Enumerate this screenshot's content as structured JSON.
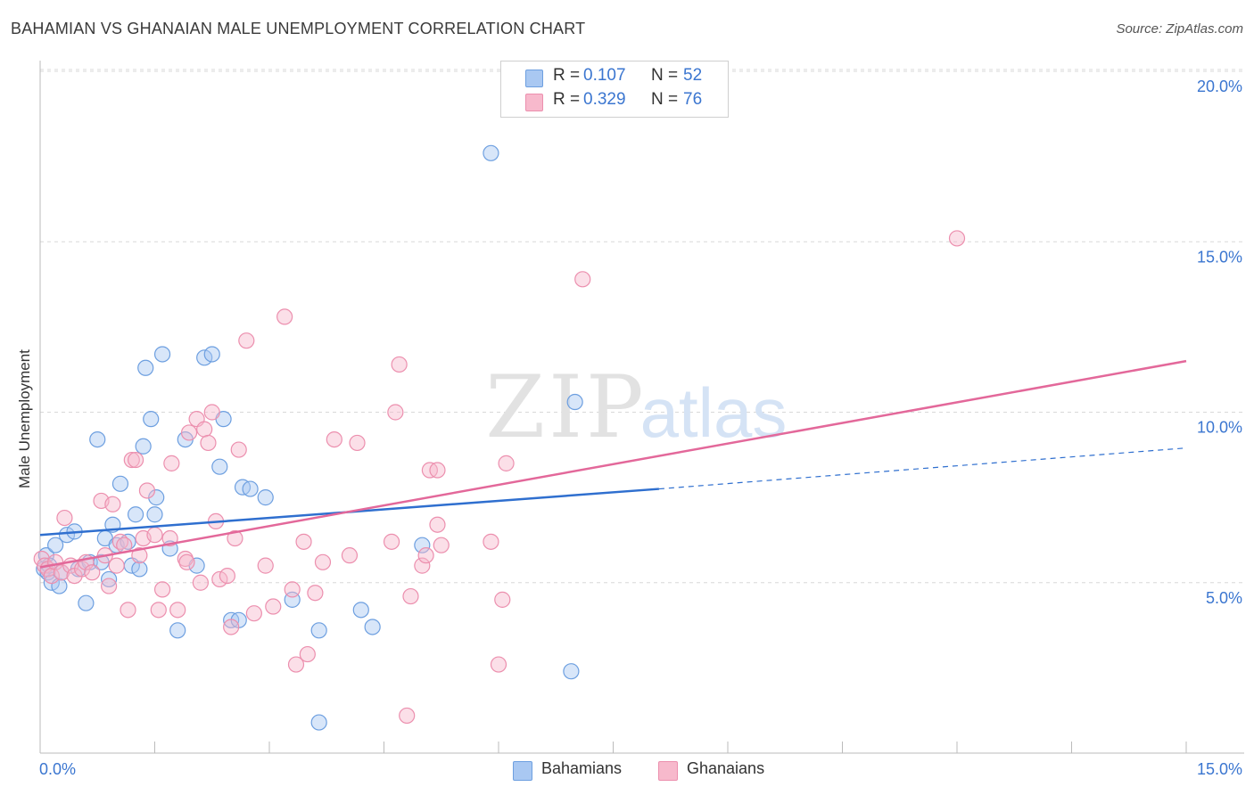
{
  "title": "BAHAMIAN VS GHANAIAN MALE UNEMPLOYMENT CORRELATION CHART",
  "source": "Source: ZipAtlas.com",
  "watermark": {
    "zip": "ZIP",
    "atlas": "atlas"
  },
  "legend": {
    "rows": [
      {
        "r_label": "R =",
        "r_value": "0.107",
        "n_label": "N =",
        "n_value": "52",
        "color": "#a9c8f2"
      },
      {
        "r_label": "R =",
        "r_value": "0.329",
        "n_label": "N =",
        "n_value": "76",
        "color": "#f7b9cc"
      }
    ]
  },
  "bottom_legend": [
    {
      "label": "Bahamians",
      "color": "#a9c8f2"
    },
    {
      "label": "Ghanaians",
      "color": "#f7b9cc"
    }
  ],
  "colors": {
    "blue_fill": "#a9c8f2",
    "blue_stroke": "#6d9fe0",
    "blue_line": "#2f6fcf",
    "pink_fill": "#f7b9cc",
    "pink_stroke": "#ec8fae",
    "pink_line": "#e3689a",
    "tick_label": "#3b76d0",
    "grid": "#d8d8d8"
  },
  "chart_data": {
    "type": "scatter",
    "title": "BAHAMIAN VS GHANAIAN MALE UNEMPLOYMENT CORRELATION CHART",
    "xlabel": "",
    "ylabel": "Male Unemployment",
    "xlim": [
      0,
      15
    ],
    "ylim": [
      0,
      20
    ],
    "x_tick_labels": [
      "0.0%",
      "15.0%"
    ],
    "y_tick_values": [
      5,
      10,
      15,
      20
    ],
    "y_tick_labels": [
      "5.0%",
      "10.0%",
      "15.0%",
      "20.0%"
    ],
    "grid": true,
    "legend_position": "top-center",
    "series": [
      {
        "name": "Bahamians",
        "r": 0.107,
        "n": 52,
        "trend": {
          "x": [
            0,
            8.1
          ],
          "y": [
            6.4,
            7.75
          ],
          "dashed_extension_to": [
            15,
            8.95
          ]
        },
        "points": [
          [
            0.05,
            5.4
          ],
          [
            0.08,
            5.8
          ],
          [
            0.1,
            5.3
          ],
          [
            0.15,
            5.0
          ],
          [
            0.2,
            6.1
          ],
          [
            0.25,
            4.9
          ],
          [
            0.28,
            5.3
          ],
          [
            0.35,
            6.4
          ],
          [
            0.45,
            6.5
          ],
          [
            0.5,
            5.4
          ],
          [
            0.6,
            4.4
          ],
          [
            0.65,
            5.6
          ],
          [
            0.75,
            9.2
          ],
          [
            0.8,
            5.6
          ],
          [
            0.85,
            6.3
          ],
          [
            0.9,
            5.1
          ],
          [
            0.95,
            6.7
          ],
          [
            1.0,
            6.1
          ],
          [
            1.05,
            7.9
          ],
          [
            1.15,
            6.2
          ],
          [
            1.2,
            5.5
          ],
          [
            1.25,
            7.0
          ],
          [
            1.3,
            5.4
          ],
          [
            1.35,
            9.0
          ],
          [
            1.38,
            11.3
          ],
          [
            1.45,
            9.8
          ],
          [
            1.5,
            7.0
          ],
          [
            1.52,
            7.5
          ],
          [
            1.6,
            11.7
          ],
          [
            1.7,
            6.0
          ],
          [
            1.8,
            3.6
          ],
          [
            1.9,
            9.2
          ],
          [
            2.05,
            5.5
          ],
          [
            2.15,
            11.6
          ],
          [
            2.25,
            11.7
          ],
          [
            2.35,
            8.4
          ],
          [
            2.4,
            9.8
          ],
          [
            2.5,
            3.9
          ],
          [
            2.6,
            3.9
          ],
          [
            2.65,
            7.8
          ],
          [
            2.75,
            7.75
          ],
          [
            2.95,
            7.5
          ],
          [
            3.3,
            4.5
          ],
          [
            3.65,
            0.9
          ],
          [
            3.65,
            3.6
          ],
          [
            4.2,
            4.2
          ],
          [
            4.35,
            3.7
          ],
          [
            5.0,
            6.1
          ],
          [
            5.9,
            17.6
          ],
          [
            6.95,
            2.4
          ],
          [
            7.0,
            10.3
          ],
          [
            0.12,
            5.5
          ]
        ]
      },
      {
        "name": "Ghanaians",
        "r": 0.329,
        "n": 76,
        "trend": {
          "x": [
            0,
            15
          ],
          "y": [
            5.45,
            11.5
          ]
        },
        "points": [
          [
            0.02,
            5.7
          ],
          [
            0.06,
            5.5
          ],
          [
            0.1,
            5.4
          ],
          [
            0.15,
            5.2
          ],
          [
            0.2,
            5.6
          ],
          [
            0.28,
            5.3
          ],
          [
            0.32,
            6.9
          ],
          [
            0.4,
            5.5
          ],
          [
            0.45,
            5.2
          ],
          [
            0.55,
            5.4
          ],
          [
            0.6,
            5.6
          ],
          [
            0.68,
            5.3
          ],
          [
            0.8,
            7.4
          ],
          [
            0.85,
            5.8
          ],
          [
            0.9,
            4.9
          ],
          [
            0.95,
            7.3
          ],
          [
            1.0,
            5.5
          ],
          [
            1.05,
            6.2
          ],
          [
            1.1,
            6.1
          ],
          [
            1.15,
            4.2
          ],
          [
            1.2,
            8.6
          ],
          [
            1.25,
            8.6
          ],
          [
            1.3,
            5.8
          ],
          [
            1.35,
            6.3
          ],
          [
            1.4,
            7.7
          ],
          [
            1.5,
            6.4
          ],
          [
            1.55,
            4.2
          ],
          [
            1.6,
            4.8
          ],
          [
            1.7,
            6.3
          ],
          [
            1.72,
            8.5
          ],
          [
            1.8,
            4.2
          ],
          [
            1.9,
            5.7
          ],
          [
            1.92,
            5.6
          ],
          [
            1.95,
            9.4
          ],
          [
            2.05,
            9.8
          ],
          [
            2.1,
            5.0
          ],
          [
            2.15,
            9.5
          ],
          [
            2.2,
            9.1
          ],
          [
            2.25,
            10.0
          ],
          [
            2.3,
            6.8
          ],
          [
            2.35,
            5.1
          ],
          [
            2.45,
            5.2
          ],
          [
            2.5,
            3.7
          ],
          [
            2.55,
            6.3
          ],
          [
            2.6,
            8.9
          ],
          [
            2.7,
            12.1
          ],
          [
            2.8,
            4.1
          ],
          [
            2.95,
            5.5
          ],
          [
            3.05,
            4.3
          ],
          [
            3.2,
            12.8
          ],
          [
            3.3,
            4.8
          ],
          [
            3.35,
            2.6
          ],
          [
            3.45,
            6.2
          ],
          [
            3.5,
            2.9
          ],
          [
            3.6,
            4.7
          ],
          [
            3.7,
            5.6
          ],
          [
            3.85,
            9.2
          ],
          [
            4.05,
            5.8
          ],
          [
            4.15,
            9.1
          ],
          [
            4.6,
            6.2
          ],
          [
            4.65,
            10.0
          ],
          [
            4.7,
            11.4
          ],
          [
            4.8,
            1.1
          ],
          [
            4.85,
            4.6
          ],
          [
            5.0,
            5.5
          ],
          [
            5.05,
            5.8
          ],
          [
            5.1,
            8.3
          ],
          [
            5.2,
            6.7
          ],
          [
            5.25,
            6.1
          ],
          [
            5.9,
            6.2
          ],
          [
            6.0,
            2.6
          ],
          [
            6.05,
            4.5
          ],
          [
            6.1,
            8.5
          ],
          [
            7.1,
            13.9
          ],
          [
            12.0,
            15.1
          ],
          [
            5.2,
            8.3
          ]
        ]
      }
    ]
  }
}
